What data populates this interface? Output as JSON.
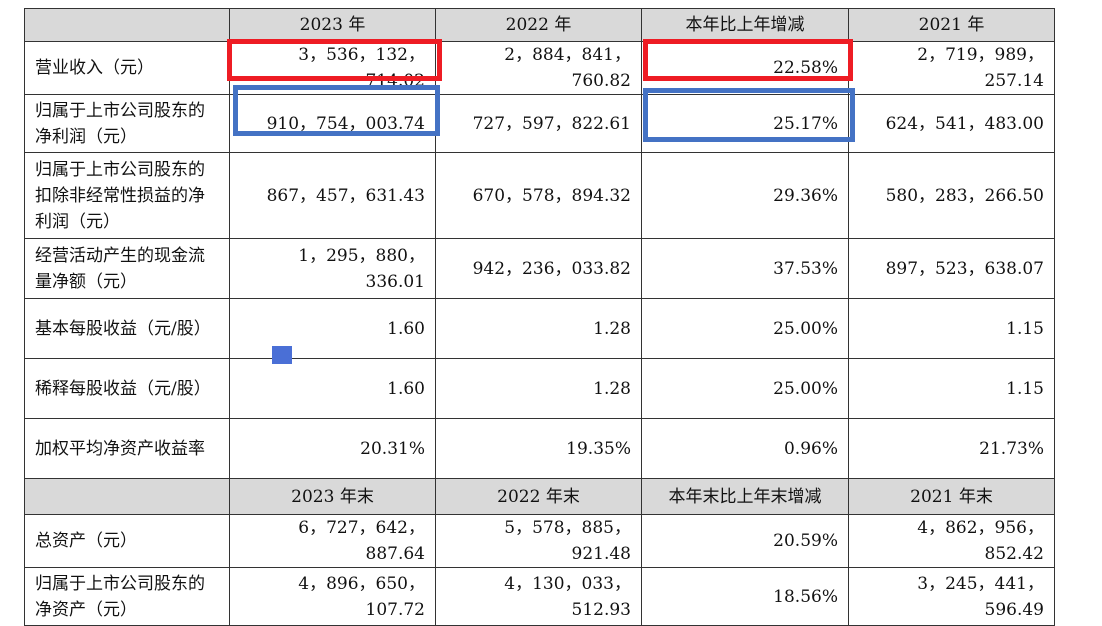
{
  "header1": [
    "",
    "2023 年",
    "2022 年",
    "本年比上年增减",
    "2021 年"
  ],
  "rows1": [
    {
      "label": "营业收入（元）",
      "values": [
        "3，536，132，714.02",
        "2，884，841，760.82",
        "22.58%",
        "2，719，989，257.14"
      ]
    },
    {
      "label": "归属于上市公司股东的净利润（元）",
      "values": [
        "910，754，003.74",
        "727，597，822.61",
        "25.17%",
        "624，541，483.00"
      ]
    },
    {
      "label": "归属于上市公司股东的扣除非经常性损益的净利润（元）",
      "values": [
        "867，457，631.43",
        "670，578，894.32",
        "29.36%",
        "580，283，266.50"
      ]
    },
    {
      "label": "经营活动产生的现金流量净额（元）",
      "values": [
        "1，295，880，336.01",
        "942，236，033.82",
        "37.53%",
        "897，523，638.07"
      ]
    },
    {
      "label": "基本每股收益（元/股）",
      "values": [
        "1.60",
        "1.28",
        "25.00%",
        "1.15"
      ]
    },
    {
      "label": "稀释每股收益（元/股）",
      "values": [
        "1.60",
        "1.28",
        "25.00%",
        "1.15"
      ]
    },
    {
      "label": "加权平均净资产收益率",
      "values": [
        "20.31%",
        "19.35%",
        "0.96%",
        "21.73%"
      ]
    }
  ],
  "header2": [
    "",
    "2023 年末",
    "2022 年末",
    "本年末比上年末增减",
    "2021 年末"
  ],
  "rows2": [
    {
      "label": "总资产（元）",
      "values": [
        "6，727，642，887.64",
        "5，578，885，921.48",
        "20.59%",
        "4，862，956，852.42"
      ]
    },
    {
      "label": "归属于上市公司股东的净资产（元）",
      "values": [
        "4，896，650，107.72",
        "4，130，033，512.93",
        "18.56%",
        "3，245，441，596.49"
      ]
    }
  ],
  "highlight_colors": {
    "red": "#ee1c24",
    "blue": "#4472c4"
  }
}
